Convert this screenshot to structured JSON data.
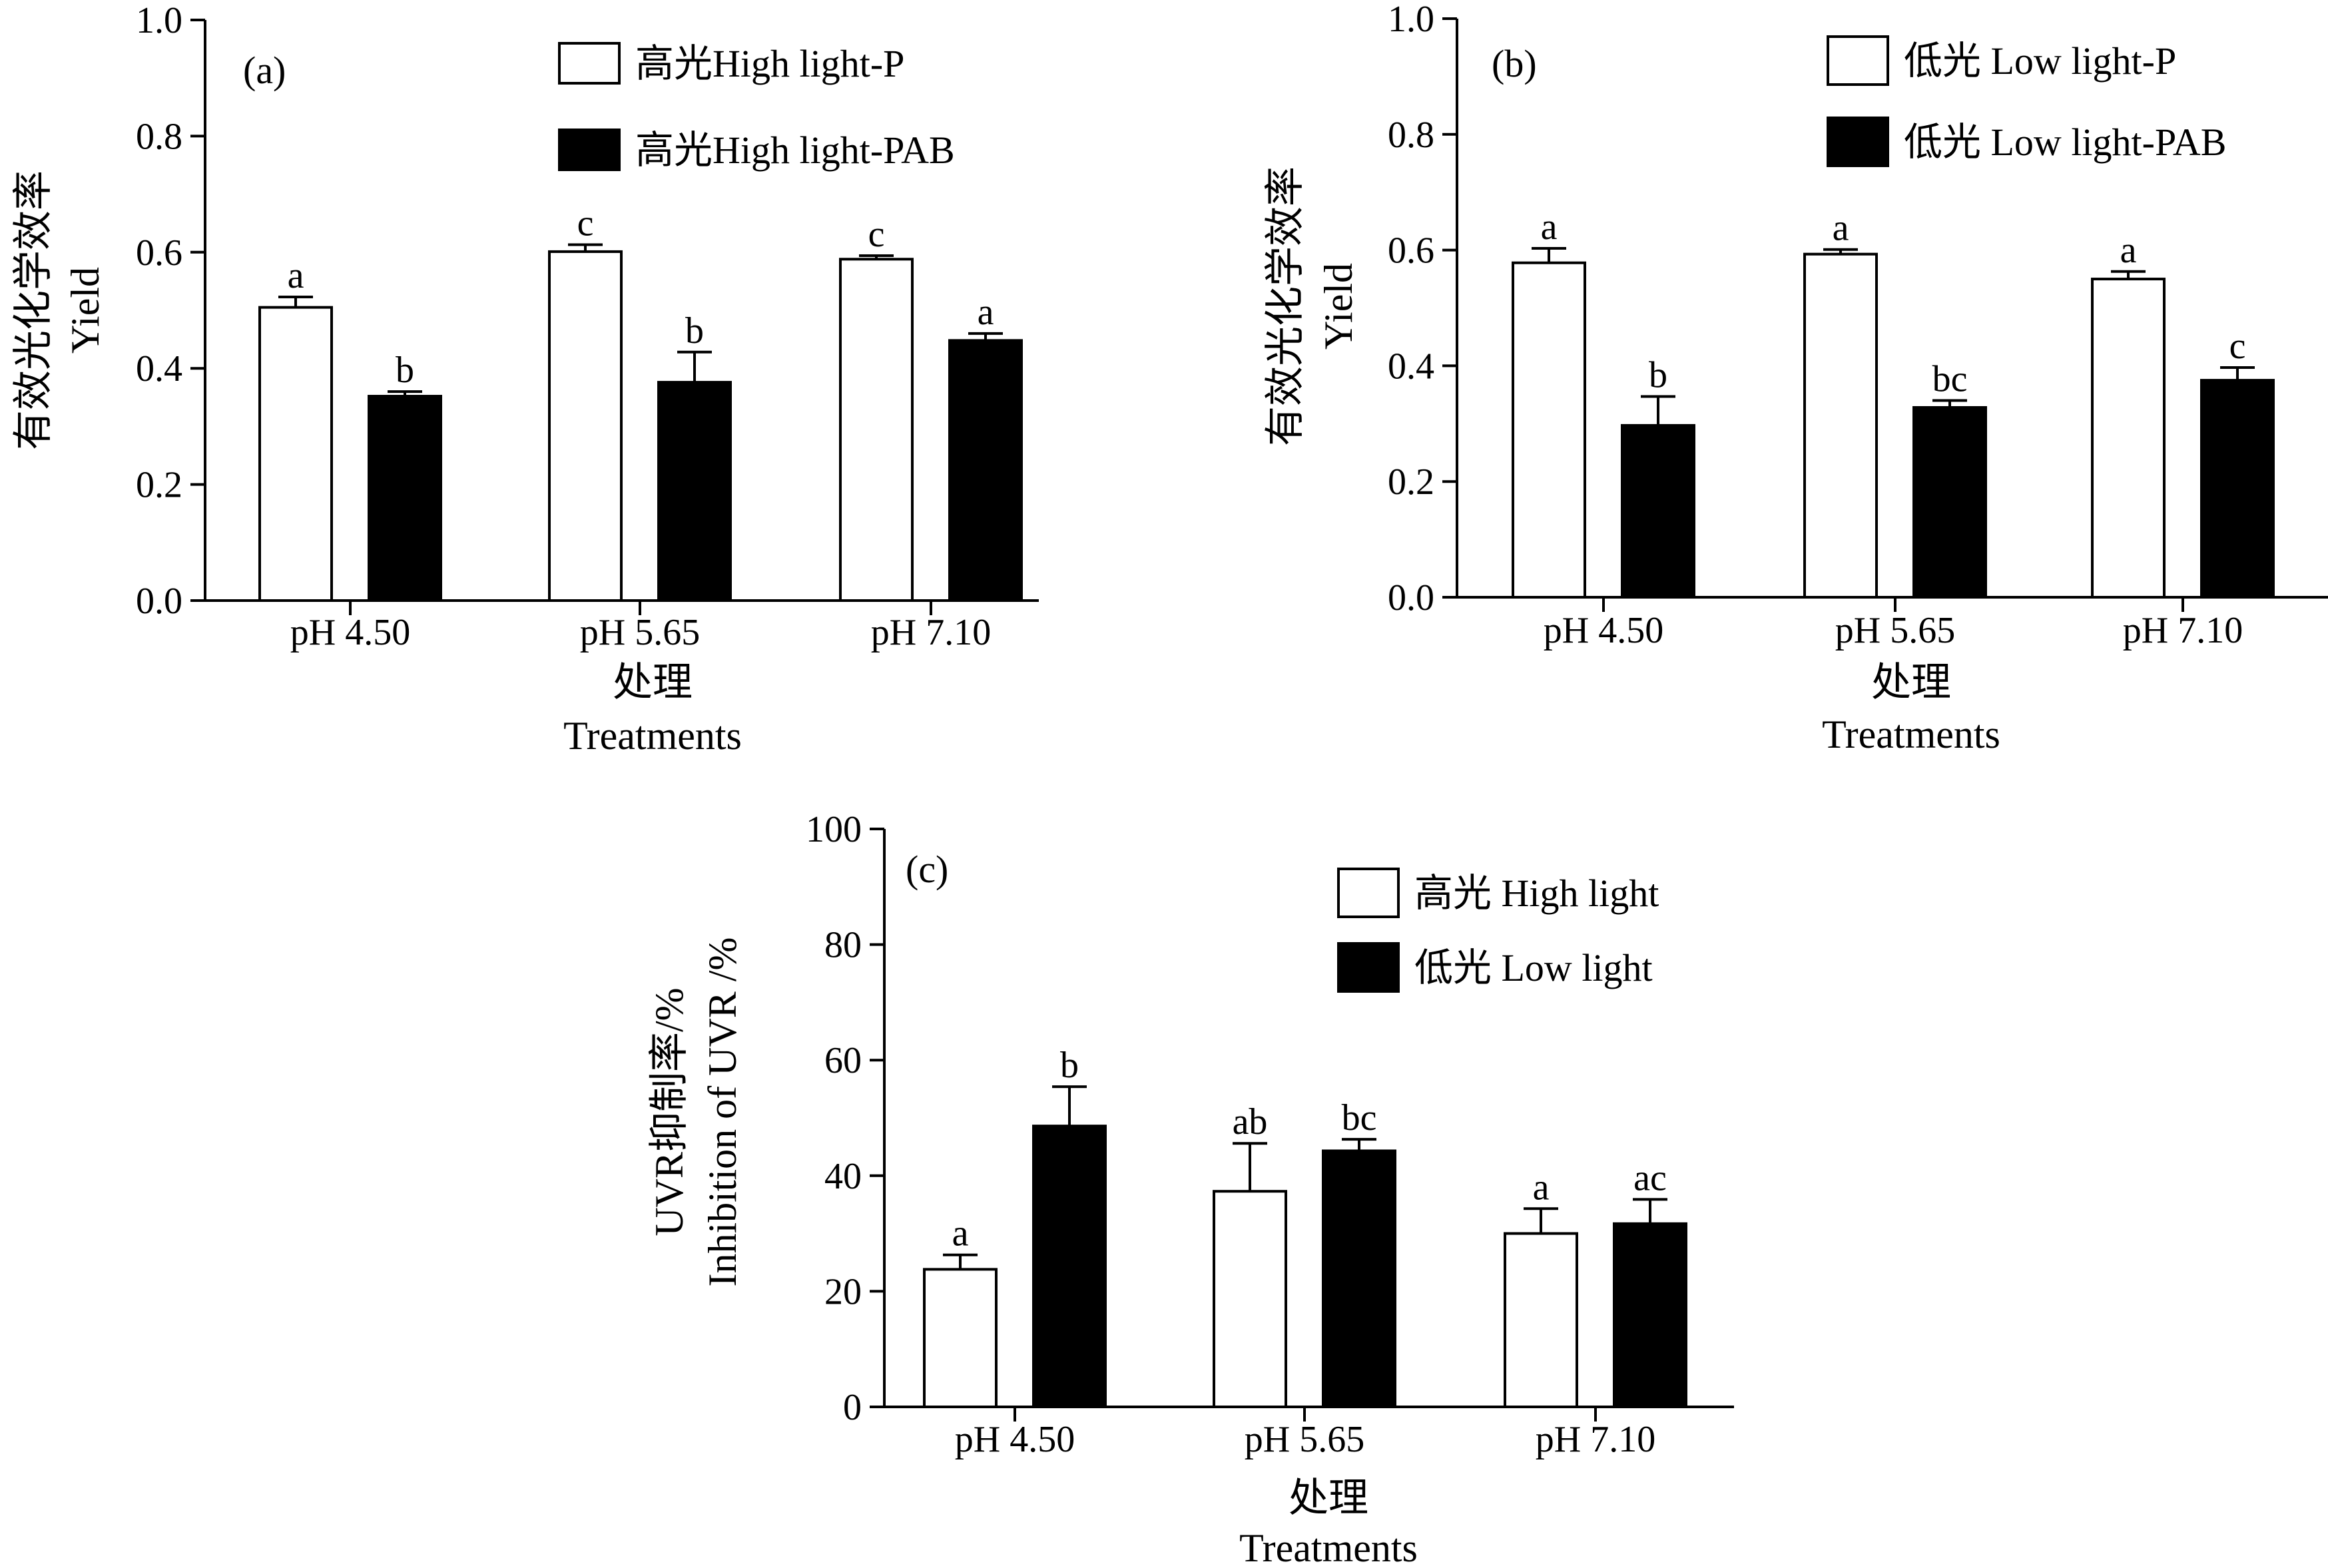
{
  "chart_data": [
    {
      "type": "bar",
      "panel_label": "(a)",
      "categories": [
        "pH 4.50",
        "pH 5.65",
        "pH 7.10"
      ],
      "ylim": [
        0,
        1.0
      ],
      "yticks": [
        "0.0",
        "0.2",
        "0.4",
        "0.6",
        "0.8",
        "1.0"
      ],
      "ylabel": [
        "有效光化学效率",
        "Yield"
      ],
      "xlabel": [
        "处理",
        "Treatments"
      ],
      "legend_position": "top-right",
      "series": [
        {
          "name": "高光High light-P",
          "fill": "#ffffff",
          "values": [
            0.505,
            0.601,
            0.588
          ],
          "errors": [
            0.018,
            0.012,
            0.006
          ],
          "labels": [
            "a",
            "c",
            "c"
          ]
        },
        {
          "name": "高光High light-PAB",
          "fill": "#000000",
          "values": [
            0.352,
            0.376,
            0.448
          ],
          "errors": [
            0.008,
            0.052,
            0.012
          ],
          "labels": [
            "b",
            "b",
            "a"
          ]
        }
      ]
    },
    {
      "type": "bar",
      "panel_label": "(b)",
      "categories": [
        "pH 4.50",
        "pH 5.65",
        "pH 7.10"
      ],
      "ylim": [
        0,
        1.0
      ],
      "yticks": [
        "0.0",
        "0.2",
        "0.4",
        "0.6",
        "0.8",
        "1.0"
      ],
      "ylabel": [
        "有效光化学效率",
        "Yield"
      ],
      "xlabel": [
        "处理",
        "Treatments"
      ],
      "legend_position": "top-right",
      "series": [
        {
          "name": "低光 Low light-P",
          "fill": "#ffffff",
          "values": [
            0.578,
            0.593,
            0.55
          ],
          "errors": [
            0.025,
            0.008,
            0.013
          ],
          "labels": [
            "a",
            "a",
            "a"
          ]
        },
        {
          "name": "低光 Low light-PAB",
          "fill": "#000000",
          "values": [
            0.297,
            0.328,
            0.375
          ],
          "errors": [
            0.05,
            0.012,
            0.022
          ],
          "labels": [
            "b",
            "bc",
            "c"
          ]
        }
      ]
    },
    {
      "type": "bar",
      "panel_label": "(c)",
      "categories": [
        "pH 4.50",
        "pH 5.65",
        "pH 7.10"
      ],
      "ylim": [
        0,
        100
      ],
      "yticks": [
        "0",
        "20",
        "40",
        "60",
        "80",
        "100"
      ],
      "ylabel": [
        "UVR抑制率/%",
        "Inhibition of UVR /%"
      ],
      "xlabel": [
        "处理",
        "Treatments"
      ],
      "legend_position": "top-right",
      "series": [
        {
          "name": "高光 High light",
          "fill": "#ffffff",
          "values": [
            23.8,
            37.3,
            30.0
          ],
          "errors": [
            2.5,
            8.3,
            4.3
          ],
          "labels": [
            "a",
            "ab",
            "a"
          ]
        },
        {
          "name": "低光 Low light",
          "fill": "#000000",
          "values": [
            48.6,
            44.3,
            31.7
          ],
          "errors": [
            6.8,
            2.0,
            4.2
          ],
          "labels": [
            "b",
            "bc",
            "ac"
          ]
        }
      ]
    }
  ]
}
